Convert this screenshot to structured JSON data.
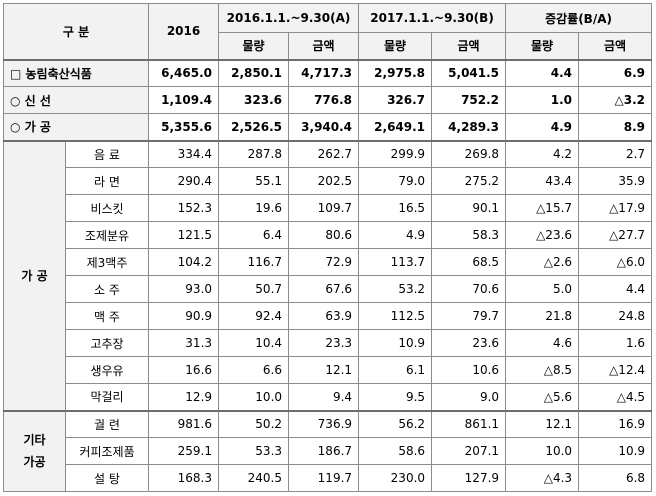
{
  "header": {
    "category": "구 분",
    "year": "2016",
    "period_a": "2016.1.1.~9.30(A)",
    "period_b": "2017.1.1.~9.30(B)",
    "rate": "증감률(B/A)",
    "qty": "물량",
    "amount": "금액"
  },
  "summary": [
    {
      "label": "□ 농림축산식품",
      "v2016": "6,465.0",
      "a_qty": "2,850.1",
      "a_amt": "4,717.3",
      "b_qty": "2,975.8",
      "b_amt": "5,041.5",
      "r_qty": "4.4",
      "r_amt": "6.9"
    },
    {
      "label": "○ 신 선",
      "v2016": "1,109.4",
      "a_qty": "323.6",
      "a_amt": "776.8",
      "b_qty": "326.7",
      "b_amt": "752.2",
      "r_qty": "1.0",
      "r_amt": "△3.2"
    },
    {
      "label": "○ 가 공",
      "v2016": "5,355.6",
      "a_qty": "2,526.5",
      "a_amt": "3,940.4",
      "b_qty": "2,649.1",
      "b_amt": "4,289.3",
      "r_qty": "4.9",
      "r_amt": "8.9"
    }
  ],
  "groups": {
    "processed": "가 공",
    "other": "기타\n가공"
  },
  "processed_rows": [
    {
      "label": "음 료",
      "v2016": "334.4",
      "a_qty": "287.8",
      "a_amt": "262.7",
      "b_qty": "299.9",
      "b_amt": "269.8",
      "r_qty": "4.2",
      "r_amt": "2.7"
    },
    {
      "label": "라 면",
      "v2016": "290.4",
      "a_qty": "55.1",
      "a_amt": "202.5",
      "b_qty": "79.0",
      "b_amt": "275.2",
      "r_qty": "43.4",
      "r_amt": "35.9"
    },
    {
      "label": "비스킷",
      "v2016": "152.3",
      "a_qty": "19.6",
      "a_amt": "109.7",
      "b_qty": "16.5",
      "b_amt": "90.1",
      "r_qty": "△15.7",
      "r_amt": "△17.9"
    },
    {
      "label": "조제분유",
      "v2016": "121.5",
      "a_qty": "6.4",
      "a_amt": "80.6",
      "b_qty": "4.9",
      "b_amt": "58.3",
      "r_qty": "△23.6",
      "r_amt": "△27.7"
    },
    {
      "label": "제3맥주",
      "v2016": "104.2",
      "a_qty": "116.7",
      "a_amt": "72.9",
      "b_qty": "113.7",
      "b_amt": "68.5",
      "r_qty": "△2.6",
      "r_amt": "△6.0"
    },
    {
      "label": "소 주",
      "v2016": "93.0",
      "a_qty": "50.7",
      "a_amt": "67.6",
      "b_qty": "53.2",
      "b_amt": "70.6",
      "r_qty": "5.0",
      "r_amt": "4.4"
    },
    {
      "label": "맥 주",
      "v2016": "90.9",
      "a_qty": "92.4",
      "a_amt": "63.9",
      "b_qty": "112.5",
      "b_amt": "79.7",
      "r_qty": "21.8",
      "r_amt": "24.8"
    },
    {
      "label": "고추장",
      "v2016": "31.3",
      "a_qty": "10.4",
      "a_amt": "23.3",
      "b_qty": "10.9",
      "b_amt": "23.6",
      "r_qty": "4.6",
      "r_amt": "1.6"
    },
    {
      "label": "생우유",
      "v2016": "16.6",
      "a_qty": "6.6",
      "a_amt": "12.1",
      "b_qty": "6.1",
      "b_amt": "10.6",
      "r_qty": "△8.5",
      "r_amt": "△12.4"
    },
    {
      "label": "막걸리",
      "v2016": "12.9",
      "a_qty": "10.0",
      "a_amt": "9.4",
      "b_qty": "9.5",
      "b_amt": "9.0",
      "r_qty": "△5.6",
      "r_amt": "△4.5"
    }
  ],
  "other_rows": [
    {
      "label": "궐 련",
      "v2016": "981.6",
      "a_qty": "50.2",
      "a_amt": "736.9",
      "b_qty": "56.2",
      "b_amt": "861.1",
      "r_qty": "12.1",
      "r_amt": "16.9"
    },
    {
      "label": "커피조제품",
      "v2016": "259.1",
      "a_qty": "53.3",
      "a_amt": "186.7",
      "b_qty": "58.6",
      "b_amt": "207.1",
      "r_qty": "10.0",
      "r_amt": "10.9"
    },
    {
      "label": "설 탕",
      "v2016": "168.3",
      "a_qty": "240.5",
      "a_amt": "119.7",
      "b_qty": "230.0",
      "b_amt": "127.9",
      "r_qty": "△4.3",
      "r_amt": "6.8"
    }
  ]
}
